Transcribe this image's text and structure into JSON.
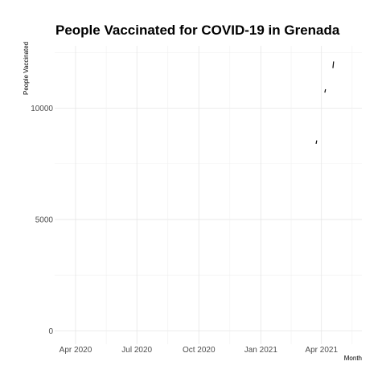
{
  "chart_data": {
    "type": "line",
    "title": "People Vaccinated for COVID-19 in Grenada",
    "xlabel": "Month",
    "ylabel": "People Vaccinated",
    "x_type": "date",
    "xlim": [
      "2020-03-01",
      "2021-05-31"
    ],
    "ylim": [
      -600,
      12800
    ],
    "x_ticks": [
      {
        "date": "2020-04-01",
        "label": "Apr 2020"
      },
      {
        "date": "2020-07-01",
        "label": "Jul 2020"
      },
      {
        "date": "2020-10-01",
        "label": "Oct 2020"
      },
      {
        "date": "2021-01-01",
        "label": "Jan 2021"
      },
      {
        "date": "2021-04-01",
        "label": "Apr 2021"
      }
    ],
    "y_ticks": [
      0,
      5000,
      10000
    ],
    "grid": true,
    "series": [
      {
        "segments": [
          [
            {
              "x": "2021-03-24",
              "y": 8400
            },
            {
              "x": "2021-03-25",
              "y": 8550
            }
          ],
          [
            {
              "x": "2021-04-06",
              "y": 10700
            },
            {
              "x": "2021-04-07",
              "y": 10850
            }
          ],
          [
            {
              "x": "2021-04-18",
              "y": 11800
            },
            {
              "x": "2021-04-19",
              "y": 12100
            }
          ]
        ]
      }
    ]
  }
}
